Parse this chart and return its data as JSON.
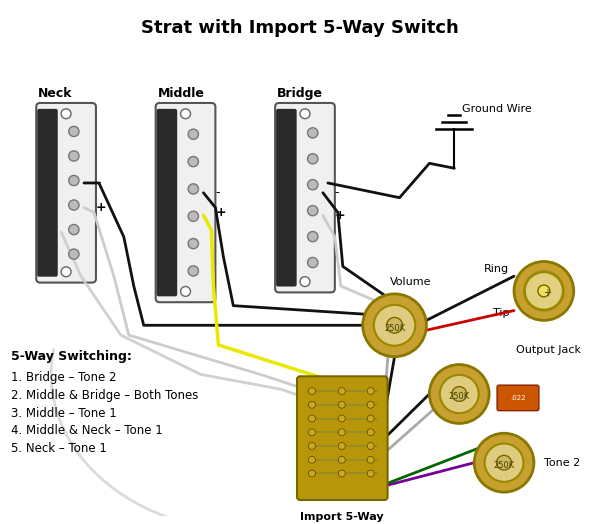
{
  "title": "Strat with Import 5-Way Switch",
  "title_fontsize": 13,
  "title_fontweight": "bold",
  "bg_color": "#ffffff",
  "switching_text": [
    "5-Way Switching:",
    "1. Bridge – Tone 2",
    "2. Middle & Bridge – Both Tones",
    "3. Middle – Tone 1",
    "4. Middle & Neck – Tone 1",
    "5. Neck – Tone 1"
  ],
  "wire_colors": {
    "black": "#111111",
    "white": "#cccccc",
    "yellow": "#e8e800",
    "red": "#cc0000",
    "green": "#006600",
    "gray": "#aaaaaa",
    "purple": "#770099",
    "orange": "#dd6600"
  },
  "pot_outer_color": "#c8a030",
  "pot_inner_color": "#e0cc80",
  "pot_center_color": "#d0b860",
  "cap_color": "#cc5500",
  "switch_body_color": "#b8960a",
  "switch_contact_color": "#888830",
  "jack_outer_color": "#c8a030",
  "jack_inner_color": "#e0d080",
  "jack_center_color": "#f0e060"
}
